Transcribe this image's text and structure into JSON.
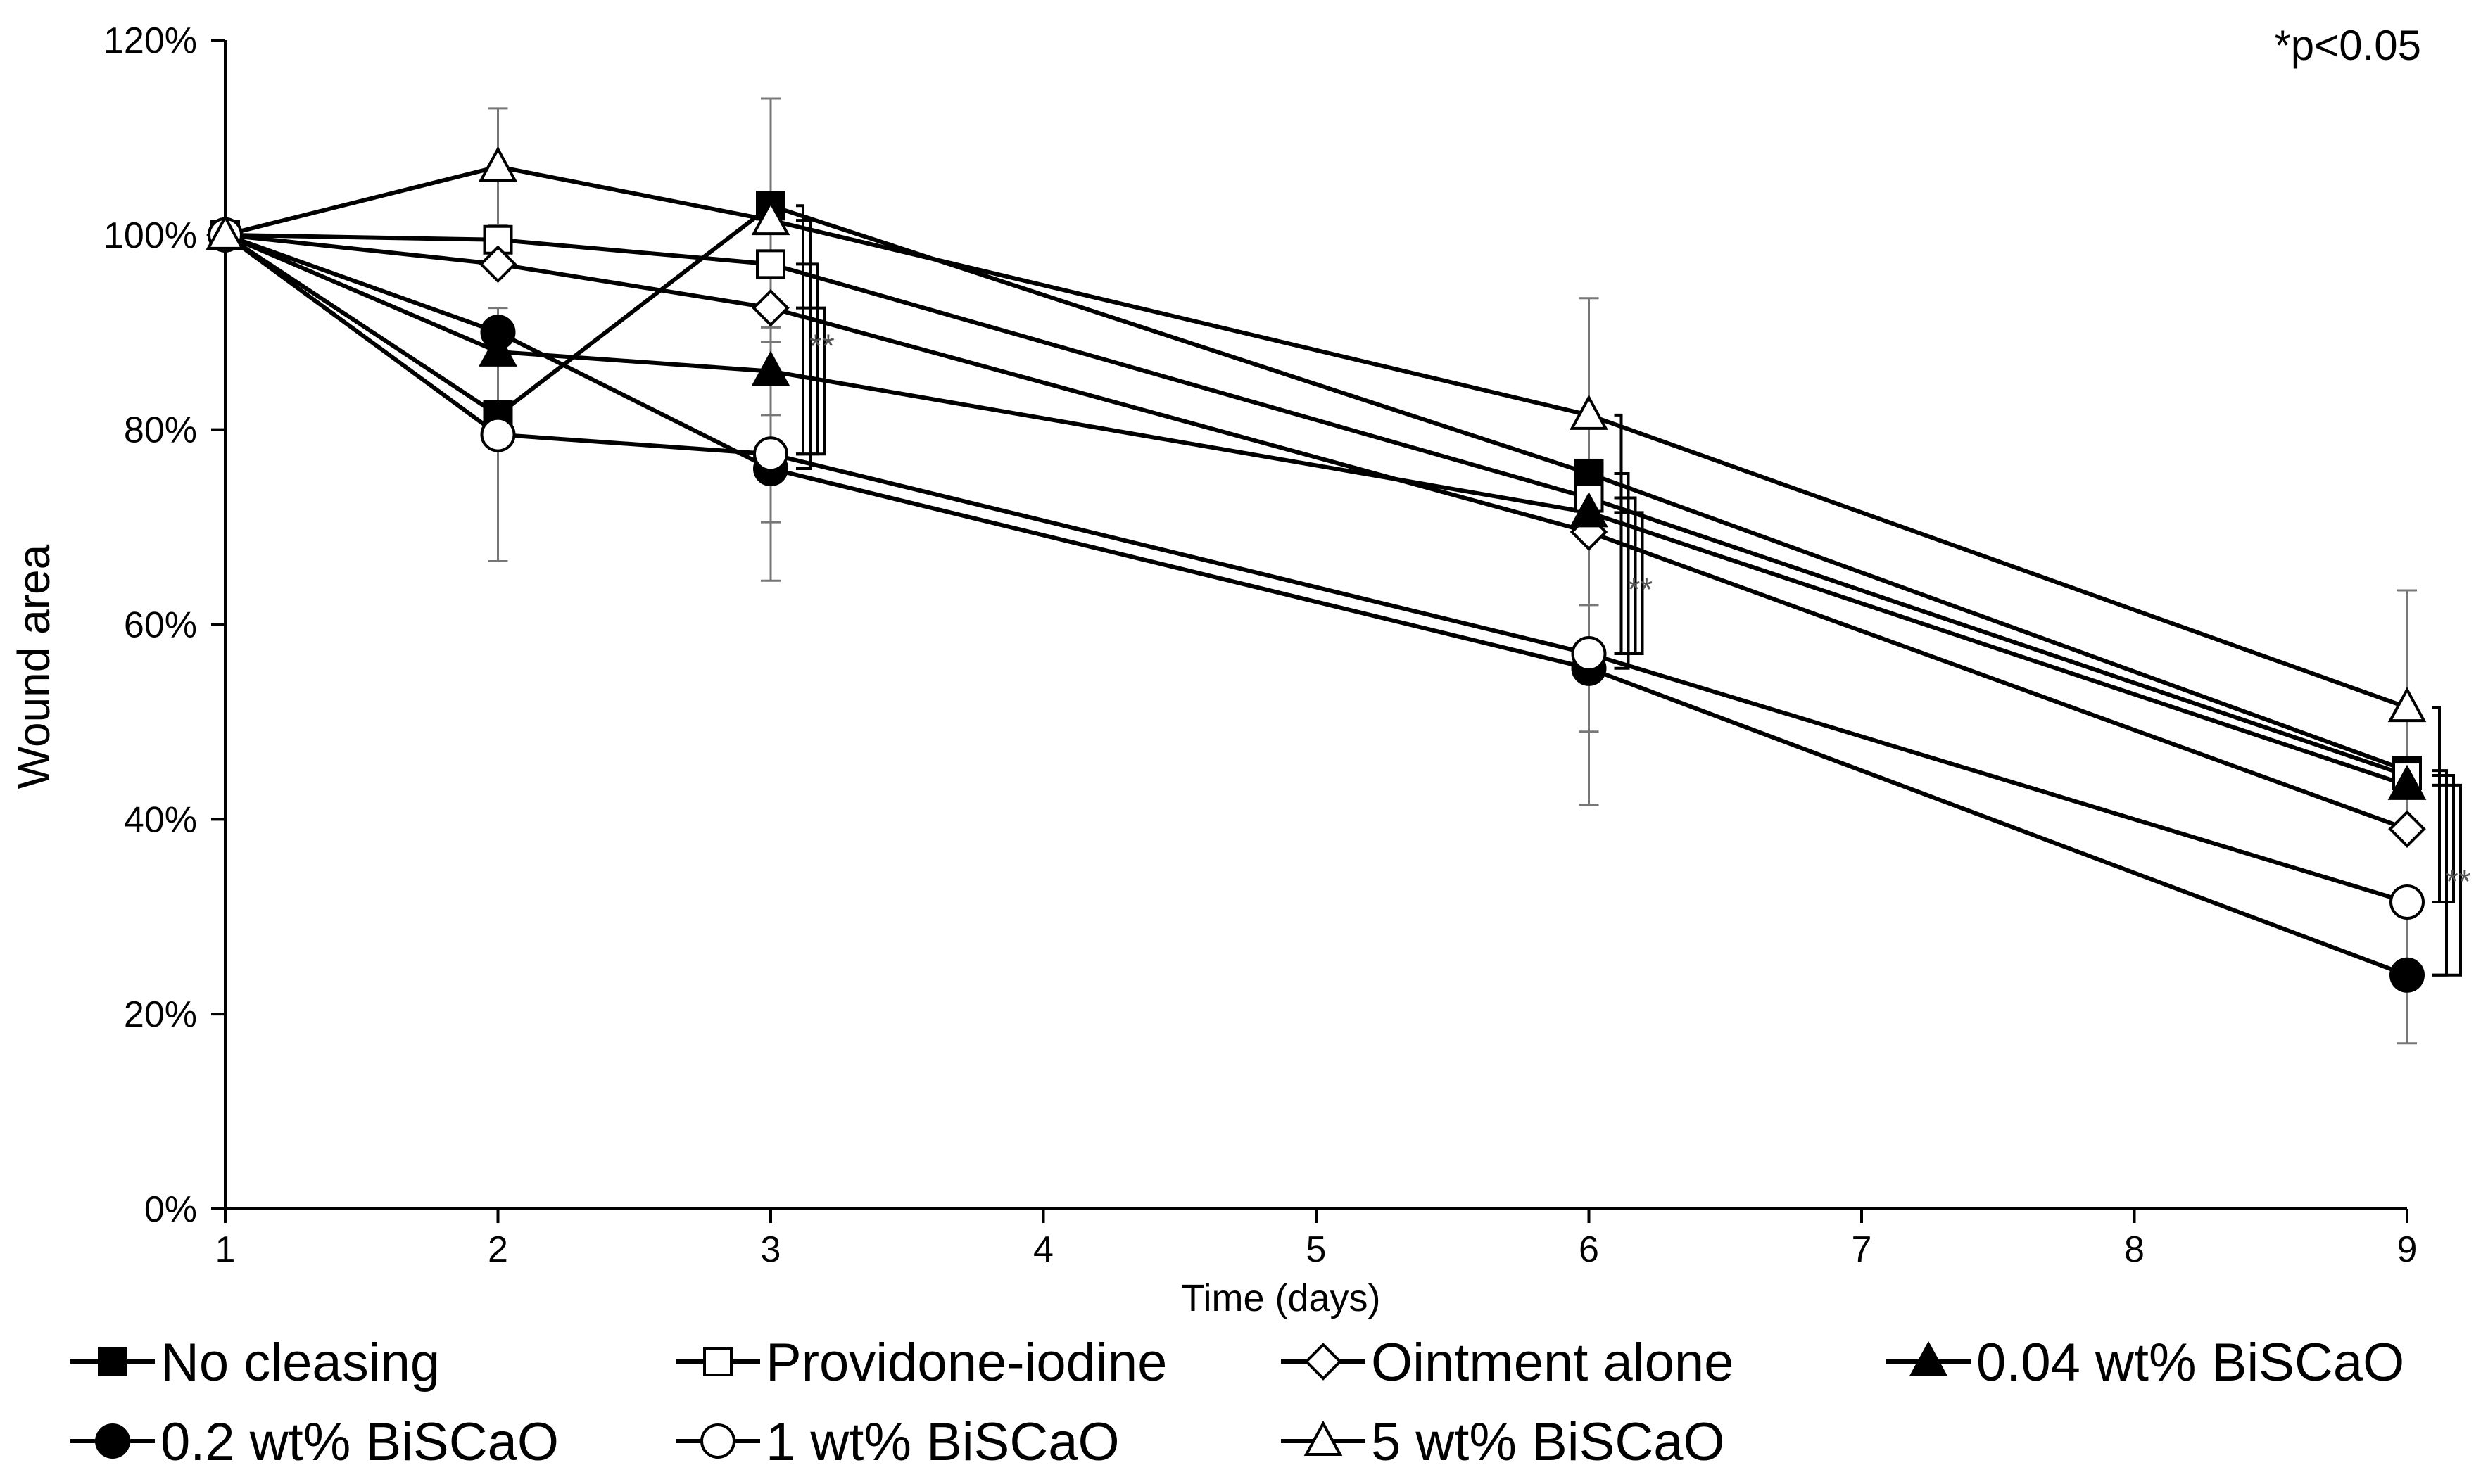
{
  "chart_data": {
    "type": "line",
    "title": "",
    "xlabel": "Time (days)",
    "ylabel": "Wound area",
    "xlim": [
      1,
      9
    ],
    "ylim": [
      0,
      120
    ],
    "x_ticks": [
      "1",
      "2",
      "3",
      "4",
      "5",
      "6",
      "7",
      "8",
      "9"
    ],
    "y_ticks": [
      "0%",
      "20%",
      "40%",
      "60%",
      "80%",
      "100%",
      "120%"
    ],
    "y_tick_values": [
      0,
      20,
      40,
      60,
      80,
      100,
      120
    ],
    "x": [
      1,
      2,
      3,
      6,
      9
    ],
    "series": [
      {
        "name": "No cleasing",
        "marker": "square",
        "fill": "filled",
        "values": [
          100,
          81.5,
          103,
          75.5,
          45
        ],
        "errors": [
          0,
          0,
          0,
          0,
          0
        ]
      },
      {
        "name": "Providone-iodine",
        "marker": "square",
        "fill": "open",
        "values": [
          100,
          99.5,
          97,
          73,
          44.5
        ],
        "errors": [
          0,
          0,
          0,
          0,
          0
        ]
      },
      {
        "name": "Ointment alone",
        "marker": "diamond",
        "fill": "open",
        "values": [
          100,
          97,
          92.5,
          69.5,
          39
        ],
        "errors": [
          0,
          0,
          0,
          0,
          0
        ]
      },
      {
        "name": "0.04 wt% BiSCaO",
        "marker": "triangle",
        "fill": "filled",
        "values": [
          100,
          88,
          86,
          71.5,
          43.5
        ],
        "errors": [
          0,
          0,
          0,
          0,
          0
        ]
      },
      {
        "name": "0.2 wt% BiSCaO",
        "marker": "circle",
        "fill": "filled",
        "values": [
          100,
          90,
          76,
          55.5,
          24
        ],
        "errors": [
          0,
          0,
          5.5,
          6.5,
          7
        ]
      },
      {
        "name": "1 wt% BiSCaO",
        "marker": "circle",
        "fill": "open",
        "values": [
          100,
          79.5,
          77.5,
          57,
          31.5
        ],
        "errors": [
          0,
          13,
          13,
          15.5,
          0
        ]
      },
      {
        "name": "5 wt% BiSCaO",
        "marker": "triangle",
        "fill": "open",
        "values": [
          100,
          107,
          101.5,
          81.5,
          51.5
        ],
        "errors": [
          0,
          6,
          12.5,
          12,
          12
        ]
      }
    ],
    "annotations": {
      "significance": "*p<0.05",
      "stars": "**"
    },
    "legend": {
      "position": "bottom",
      "columns": 4
    }
  }
}
